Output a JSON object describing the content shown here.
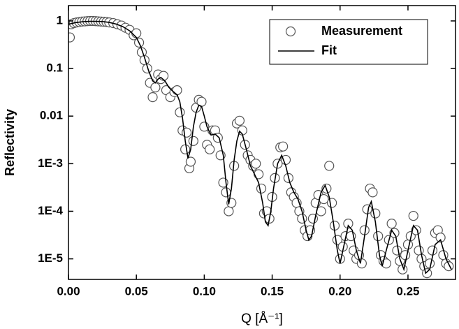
{
  "chart_data": {
    "type": "scatter",
    "xlabel": "Q [Å⁻¹]",
    "ylabel": "Reflectivity",
    "yscale": "log",
    "legend": "upper right",
    "xlim": [
      0,
      0.285
    ],
    "ylim": [
      3.7e-06,
      2.1
    ],
    "xticks": [
      {
        "value": 0,
        "label": "0.00"
      },
      0.05,
      {
        "value": 0.1,
        "label": "0.10"
      },
      0.15,
      {
        "value": 0.2,
        "label": "0.20"
      },
      0.25
    ],
    "yticks": [
      1,
      0.1,
      0.01,
      {
        "value": 0.001,
        "label": "1E-3"
      },
      {
        "value": 0.0001,
        "label": "1E-4"
      },
      {
        "value": 1e-05,
        "label": "1E-5"
      }
    ],
    "series": [
      {
        "name": "Measurement",
        "type": "scatter",
        "color": "#555555",
        "x": [
          0.001,
          0.002,
          0.004,
          0.006,
          0.008,
          0.01,
          0.012,
          0.014,
          0.016,
          0.018,
          0.02,
          0.022,
          0.024,
          0.026,
          0.028,
          0.03,
          0.033,
          0.036,
          0.039,
          0.042,
          0.045,
          0.048,
          0.05,
          0.052,
          0.054,
          0.056,
          0.058,
          0.06,
          0.062,
          0.064,
          0.066,
          0.068,
          0.07,
          0.072,
          0.075,
          0.078,
          0.08,
          0.082,
          0.084,
          0.086,
          0.087,
          0.089,
          0.09,
          0.092,
          0.094,
          0.096,
          0.098,
          0.1,
          0.102,
          0.104,
          0.106,
          0.108,
          0.11,
          0.112,
          0.114,
          0.116,
          0.118,
          0.12,
          0.122,
          0.124,
          0.126,
          0.128,
          0.13,
          0.132,
          0.134,
          0.136,
          0.138,
          0.14,
          0.142,
          0.144,
          0.146,
          0.148,
          0.15,
          0.152,
          0.154,
          0.156,
          0.158,
          0.16,
          0.162,
          0.164,
          0.166,
          0.168,
          0.17,
          0.172,
          0.174,
          0.176,
          0.178,
          0.18,
          0.182,
          0.184,
          0.186,
          0.188,
          0.19,
          0.192,
          0.194,
          0.196,
          0.198,
          0.2,
          0.202,
          0.204,
          0.206,
          0.208,
          0.21,
          0.212,
          0.214,
          0.216,
          0.218,
          0.22,
          0.222,
          0.224,
          0.226,
          0.228,
          0.23,
          0.232,
          0.234,
          0.236,
          0.238,
          0.24,
          0.242,
          0.244,
          0.246,
          0.248,
          0.25,
          0.252,
          0.254,
          0.256,
          0.258,
          0.26,
          0.262,
          0.264,
          0.266,
          0.268,
          0.27,
          0.272,
          0.274,
          0.276,
          0.278,
          0.28
        ],
        "values": [
          0.45,
          0.85,
          0.9,
          0.93,
          0.95,
          0.97,
          0.98,
          0.99,
          1.0,
          1.0,
          0.99,
          0.98,
          0.97,
          0.96,
          0.95,
          0.93,
          0.9,
          0.85,
          0.8,
          0.72,
          0.65,
          0.5,
          0.55,
          0.35,
          0.22,
          0.15,
          0.1,
          0.05,
          0.025,
          0.04,
          0.075,
          0.06,
          0.07,
          0.035,
          0.025,
          0.032,
          0.035,
          0.012,
          0.005,
          0.002,
          0.0045,
          0.0008,
          0.0011,
          0.003,
          0.015,
          0.022,
          0.02,
          0.006,
          0.0025,
          0.002,
          0.005,
          0.005,
          0.0035,
          0.0015,
          0.0004,
          0.00025,
          0.0001,
          0.00015,
          0.0009,
          0.007,
          0.008,
          0.005,
          0.0025,
          0.0015,
          0.0012,
          0.0009,
          0.001,
          0.0006,
          0.0003,
          9e-05,
          0.0001,
          7e-05,
          0.0002,
          0.0005,
          0.001,
          0.0022,
          0.0023,
          0.0012,
          0.0005,
          0.00025,
          0.0002,
          0.00015,
          0.0001,
          7e-05,
          4e-05,
          3e-05,
          4e-05,
          7e-05,
          0.00015,
          0.00022,
          0.0001,
          0.00018,
          0.0003,
          0.0009,
          0.00015,
          5e-05,
          2.5e-05,
          1e-05,
          1.8e-05,
          3e-05,
          5.5e-05,
          3e-05,
          1.5e-05,
          1e-05,
          1.2e-05,
          8e-06,
          4e-05,
          0.00011,
          0.0003,
          0.00025,
          9e-05,
          3e-05,
          1.2e-05,
          9e-06,
          8e-06,
          2.5e-05,
          5.5e-05,
          3.5e-05,
          1.5e-05,
          9e-06,
          6e-06,
          1.2e-05,
          2e-05,
          3e-05,
          8e-05,
          4e-05,
          1.5e-05,
          1e-05,
          7e-06,
          5e-06,
          8e-06,
          1.5e-05,
          3.5e-05,
          4e-05,
          2.8e-05,
          1.2e-05,
          8e-06,
          7e-06
        ]
      },
      {
        "name": "Fit",
        "type": "line",
        "color": "#000000",
        "x": [
          0,
          0.005,
          0.01,
          0.015,
          0.02,
          0.025,
          0.03,
          0.035,
          0.04,
          0.045,
          0.05,
          0.053,
          0.056,
          0.059,
          0.062,
          0.064,
          0.066,
          0.068,
          0.071,
          0.074,
          0.077,
          0.08,
          0.082,
          0.084,
          0.086,
          0.088,
          0.09,
          0.092,
          0.094,
          0.096,
          0.098,
          0.1,
          0.102,
          0.105,
          0.108,
          0.111,
          0.114,
          0.116,
          0.118,
          0.12,
          0.122,
          0.124,
          0.126,
          0.128,
          0.131,
          0.134,
          0.137,
          0.14,
          0.143,
          0.145,
          0.147,
          0.149,
          0.151,
          0.154,
          0.157,
          0.16,
          0.163,
          0.166,
          0.169,
          0.172,
          0.175,
          0.177,
          0.179,
          0.182,
          0.186,
          0.189,
          0.192,
          0.195,
          0.198,
          0.2,
          0.203,
          0.206,
          0.209,
          0.212,
          0.215,
          0.218,
          0.221,
          0.223,
          0.226,
          0.229,
          0.231,
          0.234,
          0.238,
          0.241,
          0.244,
          0.247,
          0.25,
          0.254,
          0.257,
          0.26,
          0.263,
          0.266,
          0.27,
          0.274,
          0.278,
          0.282
        ],
        "values": [
          0.85,
          0.92,
          0.96,
          0.98,
          0.98,
          0.97,
          0.93,
          0.86,
          0.76,
          0.62,
          0.45,
          0.3,
          0.17,
          0.09,
          0.055,
          0.05,
          0.06,
          0.065,
          0.055,
          0.04,
          0.033,
          0.028,
          0.02,
          0.009,
          0.003,
          0.0013,
          0.002,
          0.006,
          0.012,
          0.017,
          0.016,
          0.01,
          0.006,
          0.004,
          0.0042,
          0.0035,
          0.0015,
          0.0004,
          0.00014,
          0.0003,
          0.0012,
          0.003,
          0.0048,
          0.0042,
          0.002,
          0.0009,
          0.0006,
          0.0004,
          0.00015,
          6e-05,
          5e-05,
          0.0001,
          0.0003,
          0.001,
          0.0015,
          0.0009,
          0.0004,
          0.00025,
          0.00018,
          0.0001,
          4e-05,
          2.5e-05,
          3e-05,
          8e-05,
          0.00025,
          0.00035,
          0.0002,
          6e-05,
          1.5e-05,
          8e-06,
          2e-05,
          5e-05,
          4e-05,
          1.5e-05,
          8e-06,
          3e-05,
          0.00012,
          0.00016,
          6e-05,
          1.2e-05,
          7e-06,
          1.5e-05,
          4e-05,
          3e-05,
          1e-05,
          6e-06,
          1.5e-05,
          5e-05,
          4e-05,
          1.2e-05,
          5e-06,
          6e-06,
          2e-05,
          2.5e-05,
          1e-05,
          6e-06
        ]
      }
    ]
  }
}
